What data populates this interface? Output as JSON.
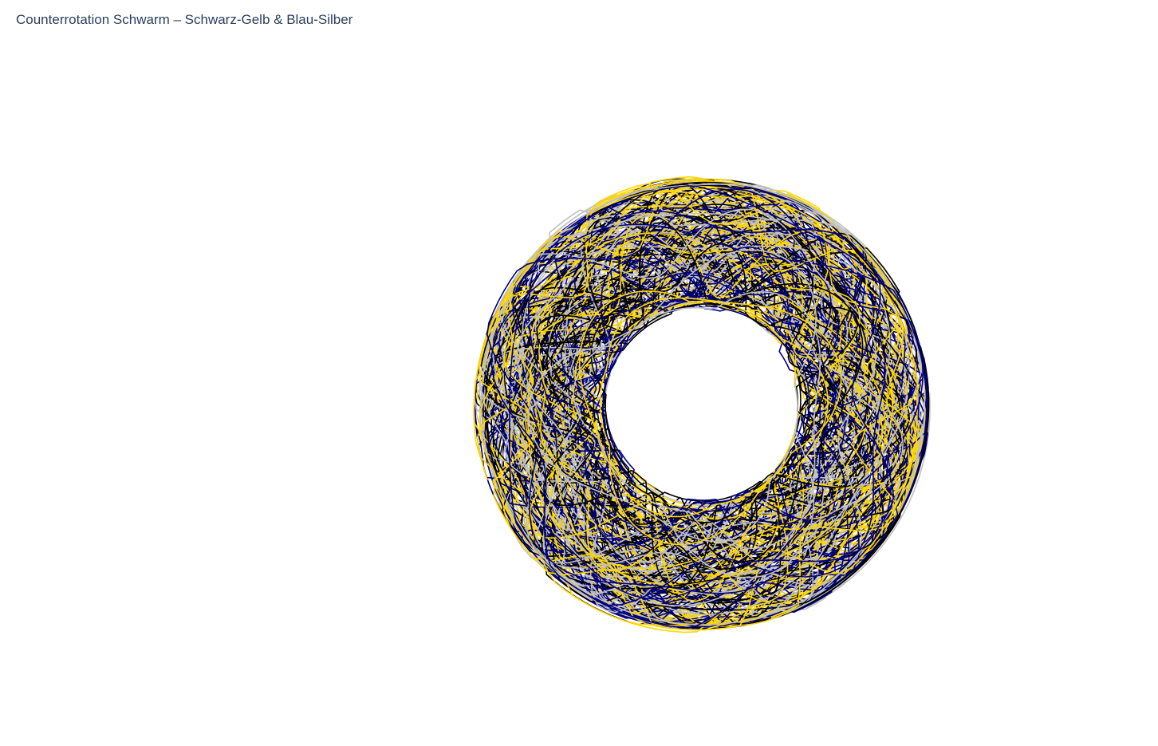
{
  "chart_data": {
    "type": "line",
    "title": "Counterrotation Schwarm – Schwarz-Gelb & Blau-Silber",
    "xlabel": "",
    "ylabel": "",
    "axes_visible": false,
    "grid": false,
    "legend": "none",
    "center": [
      0,
      0
    ],
    "inner_radius": 0.5,
    "outer_radius": 1.0,
    "series": [
      {
        "color": "#000000",
        "rotation": "counterclockwise",
        "loops": 28
      },
      {
        "color": "#FFD700",
        "rotation": "counterclockwise",
        "loops": 28
      },
      {
        "color": "#000080",
        "rotation": "clockwise",
        "loops": 28
      },
      {
        "color": "#C0C0C0",
        "rotation": "clockwise",
        "loops": 28
      }
    ]
  }
}
